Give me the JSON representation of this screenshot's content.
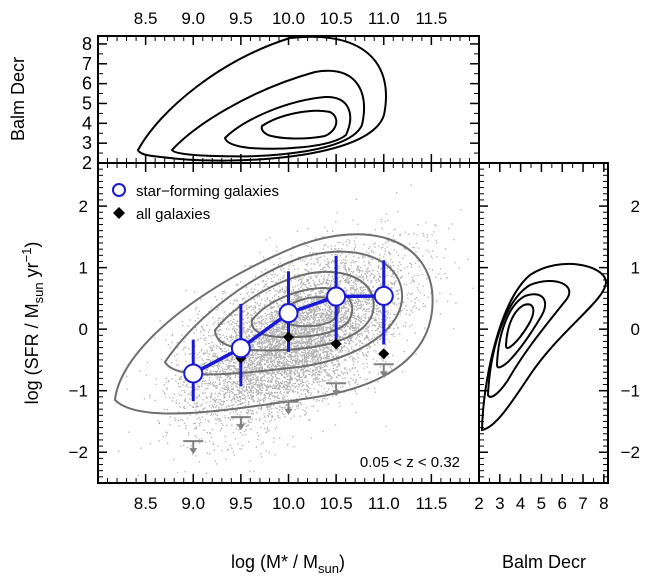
{
  "chart_data": [
    {
      "panel": "main",
      "type": "scatter",
      "xlabel": "log (M* / M",
      "xlabel_sub": "sun",
      "xlabel_end": ")",
      "ylabel": "log (SFR / M",
      "ylabel_sub": "sun",
      "ylabel_mid": " yr",
      "ylabel_sup": "−1",
      "ylabel_end": ")",
      "xlim": [
        8.0,
        12.0
      ],
      "ylim": [
        -2.5,
        2.7
      ],
      "xticks": [
        "8.5",
        "9.0",
        "9.5",
        "10.0",
        "10.5",
        "11.0",
        "11.5"
      ],
      "yticks": [
        "2",
        "1",
        "0",
        "−1",
        "−2"
      ],
      "annotation": "0.05 < z < 0.32",
      "legend": [
        {
          "label": "star−forming galaxies",
          "marker": "open-circle",
          "color": "#1a1ad6"
        },
        {
          "label": "all galaxies",
          "marker": "filled-diamond",
          "color": "#000000"
        }
      ],
      "series": [
        {
          "name": "star−forming galaxies",
          "color": "#1a1ad6",
          "x": [
            9.0,
            9.5,
            10.0,
            10.5,
            11.0
          ],
          "y": [
            -0.72,
            -0.31,
            0.26,
            0.53,
            0.54
          ],
          "yerr_low": [
            0.45,
            0.62,
            0.63,
            0.7,
            0.79
          ],
          "yerr_high": [
            0.55,
            0.72,
            0.68,
            0.66,
            0.58
          ]
        },
        {
          "name": "all galaxies",
          "color": "#000000",
          "x": [
            9.0,
            9.5,
            10.0,
            10.5,
            11.0
          ],
          "y": [
            -0.74,
            -0.47,
            -0.13,
            -0.24,
            -0.4
          ]
        },
        {
          "name": "upper limits",
          "color": "#808080",
          "x": [
            9.0,
            9.5,
            10.0,
            10.5,
            11.0
          ],
          "y": [
            -1.82,
            -1.43,
            -1.18,
            -0.88,
            -0.57
          ]
        }
      ],
      "background": {
        "points": "grey density of individual galaxies",
        "color": "#a8a8a8",
        "contour_color": "#777777"
      }
    },
    {
      "panel": "top",
      "type": "contour",
      "ylabel": "Balm Decr",
      "xlim": [
        8.0,
        12.0
      ],
      "ylim": [
        2.0,
        8.4
      ],
      "xticks": [
        "8.5",
        "9.0",
        "9.5",
        "10.0",
        "10.5",
        "11.0",
        "11.5"
      ],
      "yticks": [
        "8",
        "7",
        "6",
        "5",
        "4",
        "3",
        "2"
      ],
      "peak": {
        "x": 10.2,
        "y": 4.2
      }
    },
    {
      "panel": "right",
      "type": "contour",
      "xlabel": "Balm Decr",
      "xlim": [
        2.0,
        8.2
      ],
      "ylim": [
        -2.5,
        2.7
      ],
      "xticks": [
        "2",
        "3",
        "4",
        "5",
        "6",
        "7",
        "8"
      ],
      "yticks": [
        "2",
        "1",
        "0",
        "−1",
        "−2"
      ],
      "peak": {
        "x": 3.8,
        "y": 0.2
      }
    }
  ]
}
